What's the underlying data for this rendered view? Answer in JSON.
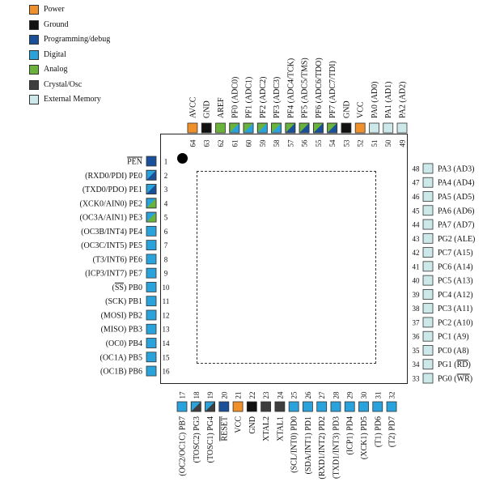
{
  "colors": {
    "power": "#f0902a",
    "ground": "#111111",
    "programming": "#1a4f9a",
    "digital": "#2aa3dc",
    "analog": "#6ab33a",
    "crystal": "#3e3e3e",
    "external_memory": "#cde8e8"
  },
  "legend": [
    {
      "label": "Power",
      "type": "power"
    },
    {
      "label": "Ground",
      "type": "ground"
    },
    {
      "label": "Programming/debug",
      "type": "programming"
    },
    {
      "label": "Digital",
      "type": "digital"
    },
    {
      "label": "Analog",
      "type": "analog"
    },
    {
      "label": "Crystal/Osc",
      "type": "crystal"
    },
    {
      "label": "External Memory",
      "type": "external_memory"
    }
  ],
  "pins_left": [
    {
      "num": "1",
      "label": "PEN",
      "overbar": "PEN",
      "type": "programming"
    },
    {
      "num": "2",
      "label": "(RXD0/PDI) PE0",
      "type": "digital",
      "split": "programming"
    },
    {
      "num": "3",
      "label": "(TXD0/PDO) PE1",
      "type": "digital",
      "split": "programming"
    },
    {
      "num": "4",
      "label": "(XCK0/AIN0) PE2",
      "type": "digital",
      "split": "analog"
    },
    {
      "num": "5",
      "label": "(OC3A/AIN1) PE3",
      "type": "digital",
      "split": "analog"
    },
    {
      "num": "6",
      "label": "(OC3B/INT4) PE4",
      "type": "digital"
    },
    {
      "num": "7",
      "label": "(OC3C/INT5) PE5",
      "type": "digital"
    },
    {
      "num": "8",
      "label": "(T3/INT6) PE6",
      "type": "digital"
    },
    {
      "num": "9",
      "label": "(ICP3/INT7) PE7",
      "type": "digital"
    },
    {
      "num": "10",
      "label": "(SS) PB0",
      "overbar": "SS",
      "type": "digital"
    },
    {
      "num": "11",
      "label": "(SCK) PB1",
      "type": "digital"
    },
    {
      "num": "12",
      "label": "(MOSI) PB2",
      "type": "digital"
    },
    {
      "num": "13",
      "label": "(MISO) PB3",
      "type": "digital"
    },
    {
      "num": "14",
      "label": "(OC0) PB4",
      "type": "digital"
    },
    {
      "num": "15",
      "label": "(OC1A) PB5",
      "type": "digital"
    },
    {
      "num": "16",
      "label": "(OC1B) PB6",
      "type": "digital"
    }
  ],
  "pins_bottom": [
    {
      "num": "17",
      "label": "(OC2/OC1C) PB7",
      "type": "digital"
    },
    {
      "num": "18",
      "label": "(TOSC2) PG3",
      "type": "digital",
      "split": "crystal"
    },
    {
      "num": "19",
      "label": "(TOSC1) PG4",
      "type": "digital",
      "split": "crystal"
    },
    {
      "num": "20",
      "label": "RESET",
      "overbar": "RESET",
      "type": "programming"
    },
    {
      "num": "21",
      "label": "VCC",
      "type": "power"
    },
    {
      "num": "22",
      "label": "GND",
      "type": "ground"
    },
    {
      "num": "23",
      "label": "XTAL2",
      "type": "crystal"
    },
    {
      "num": "24",
      "label": "XTAL1",
      "type": "crystal"
    },
    {
      "num": "25",
      "label": "(SCL/INT0) PD0",
      "type": "digital"
    },
    {
      "num": "26",
      "label": "(SDA/INT1) PD1",
      "type": "digital"
    },
    {
      "num": "27",
      "label": "(RXD1/INT2) PD2",
      "type": "digital"
    },
    {
      "num": "28",
      "label": "(TXD1/INT3) PD3",
      "type": "digital"
    },
    {
      "num": "29",
      "label": "(ICP1) PD4",
      "type": "digital"
    },
    {
      "num": "30",
      "label": "(XCK1) PD5",
      "type": "digital"
    },
    {
      "num": "31",
      "label": "(T1) PD6",
      "type": "digital"
    },
    {
      "num": "32",
      "label": "(T2) PD7",
      "type": "digital"
    }
  ],
  "pins_right": [
    {
      "num": "33",
      "label": "PG0 (WR)",
      "overbar": "WR",
      "type": "external_memory"
    },
    {
      "num": "34",
      "label": "PG1 (RD)",
      "overbar": "RD",
      "type": "external_memory"
    },
    {
      "num": "35",
      "label": "PC0 (A8)",
      "type": "external_memory"
    },
    {
      "num": "36",
      "label": "PC1 (A9)",
      "type": "external_memory"
    },
    {
      "num": "37",
      "label": "PC2 (A10)",
      "type": "external_memory"
    },
    {
      "num": "38",
      "label": "PC3 (A11)",
      "type": "external_memory"
    },
    {
      "num": "39",
      "label": "PC4 (A12)",
      "type": "external_memory"
    },
    {
      "num": "40",
      "label": "PC5 (A13)",
      "type": "external_memory"
    },
    {
      "num": "41",
      "label": "PC6 (A14)",
      "type": "external_memory"
    },
    {
      "num": "42",
      "label": "PC7 (A15)",
      "type": "external_memory"
    },
    {
      "num": "43",
      "label": "PG2 (ALE)",
      "type": "external_memory"
    },
    {
      "num": "44",
      "label": "PA7 (AD7)",
      "type": "external_memory"
    },
    {
      "num": "45",
      "label": "PA6 (AD6)",
      "type": "external_memory"
    },
    {
      "num": "46",
      "label": "PA5 (AD5)",
      "type": "external_memory"
    },
    {
      "num": "47",
      "label": "PA4 (AD4)",
      "type": "external_memory"
    },
    {
      "num": "48",
      "label": "PA3 (AD3)",
      "type": "external_memory"
    }
  ],
  "pins_top": [
    {
      "num": "49",
      "label": "PA2 (AD2)",
      "type": "external_memory"
    },
    {
      "num": "50",
      "label": "PA1 (AD1)",
      "type": "external_memory"
    },
    {
      "num": "51",
      "label": "PA0 (AD0)",
      "type": "external_memory"
    },
    {
      "num": "52",
      "label": "VCC",
      "type": "power"
    },
    {
      "num": "53",
      "label": "GND",
      "type": "ground"
    },
    {
      "num": "54",
      "label": "PF7 (ADC7/TDI)",
      "type": "analog",
      "split": "programming"
    },
    {
      "num": "55",
      "label": "PF6 (ADC6/TDO)",
      "type": "analog",
      "split": "programming"
    },
    {
      "num": "56",
      "label": "PF5 (ADC5/TMS)",
      "type": "analog",
      "split": "programming"
    },
    {
      "num": "57",
      "label": "PF4 (ADC4/TCK)",
      "type": "analog",
      "split": "programming"
    },
    {
      "num": "58",
      "label": "PF3 (ADC3)",
      "type": "analog",
      "split": "digital"
    },
    {
      "num": "59",
      "label": "PF2 (ADC2)",
      "type": "analog",
      "split": "digital"
    },
    {
      "num": "60",
      "label": "PF1 (ADC1)",
      "type": "analog",
      "split": "digital"
    },
    {
      "num": "61",
      "label": "PF0 (ADC0)",
      "type": "analog",
      "split": "digital"
    },
    {
      "num": "62",
      "label": "AREF",
      "type": "analog"
    },
    {
      "num": "63",
      "label": "GND",
      "type": "ground"
    },
    {
      "num": "64",
      "label": "AVCC",
      "type": "power"
    }
  ]
}
